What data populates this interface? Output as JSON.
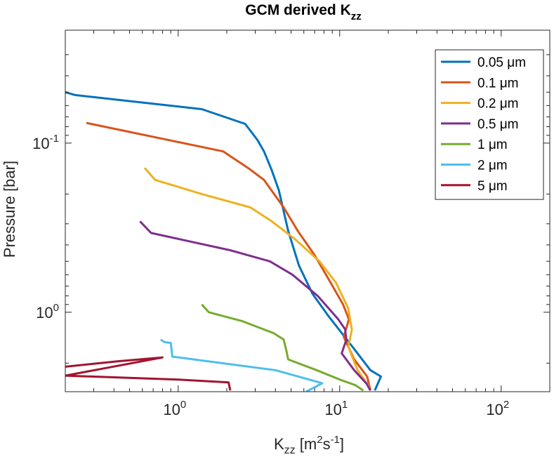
{
  "chart_data": {
    "type": "line",
    "title": "GCM derived K",
    "title_sub": "zz",
    "xlabel": {
      "main": "K",
      "sub": "zz",
      "unit_open": " [m",
      "sup1": "2",
      "mid": "s",
      "sup2": "-1",
      "close": "]"
    },
    "ylabel": "Pressure [bar]",
    "xscale": "log",
    "yscale": "log",
    "yreversed": true,
    "xlim": [
      0.2,
      200
    ],
    "ylim": [
      0.0215,
      2.95
    ],
    "xticks": [
      {
        "value": 1,
        "base": "10",
        "exp": "0"
      },
      {
        "value": 10,
        "base": "10",
        "exp": "1"
      },
      {
        "value": 100,
        "base": "10",
        "exp": "2"
      }
    ],
    "yticks": [
      {
        "value": 0.1,
        "base": "10",
        "exp": "-1"
      },
      {
        "value": 1,
        "base": "10",
        "exp": "0"
      }
    ],
    "legend_position": "top-right",
    "series": [
      {
        "name": "0.05 μm",
        "color": "#0072BD",
        "points": [
          [
            0.2,
            0.05
          ],
          [
            0.23,
            0.052
          ],
          [
            1.4,
            0.063
          ],
          [
            2.6,
            0.077
          ],
          [
            3.1,
            0.096
          ],
          [
            3.4,
            0.112
          ],
          [
            3.8,
            0.145
          ],
          [
            4.2,
            0.19
          ],
          [
            4.8,
            0.33
          ],
          [
            5.6,
            0.53
          ],
          [
            6.8,
            0.78
          ],
          [
            8.5,
            1.05
          ],
          [
            12,
            1.6
          ],
          [
            15.5,
            2.2
          ],
          [
            18,
            2.4
          ],
          [
            16.5,
            2.9
          ]
        ]
      },
      {
        "name": "0.1 μm",
        "color": "#D95319",
        "points": [
          [
            0.27,
            0.076
          ],
          [
            1.9,
            0.112
          ],
          [
            2.7,
            0.14
          ],
          [
            3.4,
            0.165
          ],
          [
            4.5,
            0.24
          ],
          [
            5.5,
            0.33
          ],
          [
            7,
            0.46
          ],
          [
            8.8,
            0.67
          ],
          [
            10.5,
            0.9
          ],
          [
            11.4,
            1.1
          ],
          [
            10.6,
            1.4
          ],
          [
            12.3,
            1.9
          ],
          [
            14.8,
            2.4
          ],
          [
            15.5,
            2.9
          ]
        ]
      },
      {
        "name": "0.2 μm",
        "color": "#EDB120",
        "points": [
          [
            0.62,
            0.14
          ],
          [
            0.72,
            0.165
          ],
          [
            1.4,
            0.2
          ],
          [
            2.8,
            0.24
          ],
          [
            3.8,
            0.29
          ],
          [
            5.3,
            0.37
          ],
          [
            7.5,
            0.5
          ],
          [
            9.5,
            0.67
          ],
          [
            11.3,
            0.95
          ],
          [
            11.9,
            1.27
          ],
          [
            11.3,
            1.6
          ],
          [
            12.9,
            2.2
          ],
          [
            15,
            2.7
          ],
          [
            15.4,
            2.9
          ]
        ]
      },
      {
        "name": "0.5 μm",
        "color": "#7E2F8E",
        "points": [
          [
            0.58,
            0.29
          ],
          [
            0.68,
            0.34
          ],
          [
            2.1,
            0.43
          ],
          [
            3.7,
            0.5
          ],
          [
            5.1,
            0.6
          ],
          [
            7.3,
            0.8
          ],
          [
            9.8,
            1.1
          ],
          [
            10.8,
            1.26
          ],
          [
            11,
            1.45
          ],
          [
            10.3,
            1.75
          ],
          [
            12.3,
            2.2
          ],
          [
            14.7,
            2.65
          ],
          [
            15.5,
            2.9
          ]
        ]
      },
      {
        "name": "1 μm",
        "color": "#77AC30",
        "points": [
          [
            1.4,
            0.9
          ],
          [
            1.55,
            1.0
          ],
          [
            2.5,
            1.13
          ],
          [
            3.9,
            1.33
          ],
          [
            4.5,
            1.45
          ],
          [
            4.7,
            1.72
          ],
          [
            4.8,
            1.9
          ],
          [
            7.2,
            2.2
          ],
          [
            10,
            2.5
          ],
          [
            12.5,
            2.7
          ],
          [
            14,
            2.9
          ]
        ]
      },
      {
        "name": "2 μm",
        "color": "#4DBEEE",
        "points": [
          [
            0.78,
            1.45
          ],
          [
            0.82,
            1.5
          ],
          [
            0.9,
            1.52
          ],
          [
            0.92,
            1.83
          ],
          [
            4,
            2.2
          ],
          [
            7.5,
            2.6
          ],
          [
            7.8,
            2.63
          ],
          [
            6.2,
            2.95
          ]
        ]
      },
      {
        "name": "5 μm",
        "color": "#A2142F",
        "points": [
          [
            0.2,
            2.1
          ],
          [
            0.42,
            1.95
          ],
          [
            0.8,
            1.85
          ],
          [
            0.2,
            2.37
          ],
          [
            1.0,
            2.5
          ],
          [
            2.05,
            2.6
          ],
          [
            2.1,
            2.9
          ]
        ]
      }
    ]
  }
}
